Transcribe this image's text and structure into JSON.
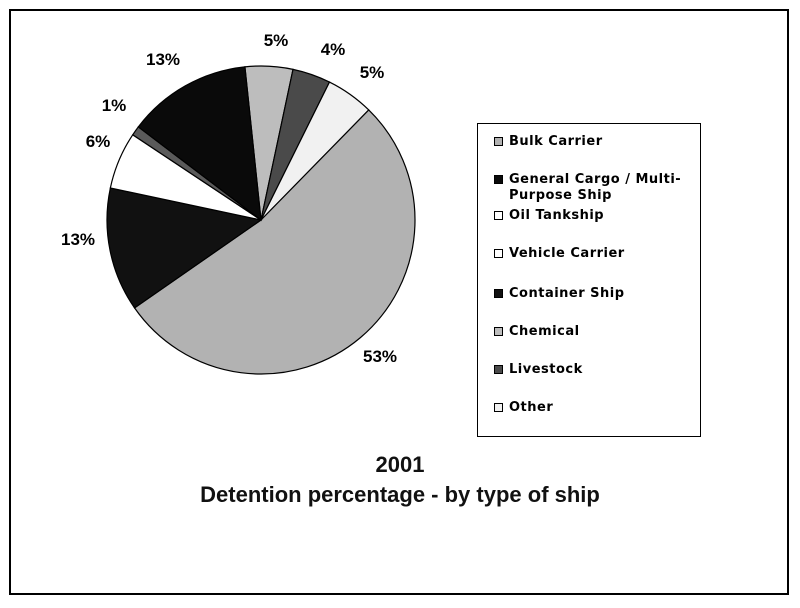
{
  "chart_data": {
    "type": "pie",
    "title": "2001",
    "subtitle": "Detention percentage - by type of ship",
    "slices": [
      {
        "label": "5%",
        "value": 5,
        "color": "#bdbdbd"
      },
      {
        "label": "4%",
        "value": 4,
        "color": "#4a4a4a"
      },
      {
        "label": "5%",
        "value": 5,
        "color": "#f1f1f1"
      },
      {
        "label": "53%",
        "value": 53,
        "color": "#b2b2b2"
      },
      {
        "label": "13%",
        "value": 13,
        "color": "#111111"
      },
      {
        "label": "6%",
        "value": 6,
        "color": "#ffffff"
      },
      {
        "label": "1%",
        "value": 1,
        "color": "#5a5a5a"
      },
      {
        "label": "13%",
        "value": 13,
        "color": "#0a0a0a"
      }
    ],
    "legend": [
      {
        "label": "Bulk Carrier",
        "color": "#b2b2b2"
      },
      {
        "label": "General Cargo / Multi-Purpose Ship",
        "color": "#0a0a0a"
      },
      {
        "label": "Oil Tankship",
        "color": "#ffffff"
      },
      {
        "label": "Vehicle Carrier",
        "color": "#ffffff"
      },
      {
        "label": "Container Ship",
        "color": "#111111"
      },
      {
        "label": "Chemical",
        "color": "#bdbdbd"
      },
      {
        "label": "Livestock",
        "color": "#4a4a4a"
      },
      {
        "label": "Other",
        "color": "#f1f1f1"
      }
    ]
  }
}
